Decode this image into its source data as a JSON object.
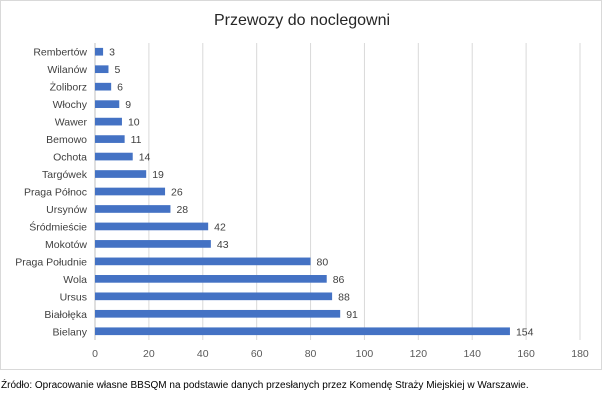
{
  "chart_data": {
    "type": "bar",
    "orientation": "horizontal",
    "title": "Przewozy do noclegowni",
    "xlabel": "",
    "ylabel": "",
    "categories": [
      "Rembertów",
      "Wilanów",
      "Żoliborz",
      "Włochy",
      "Wawer",
      "Bemowo",
      "Ochota",
      "Targówek",
      "Praga Północ",
      "Ursynów",
      "Śródmieście",
      "Mokotów",
      "Praga Południe",
      "Wola",
      "Ursus",
      "Białołęka",
      "Bielany"
    ],
    "values": [
      3,
      5,
      6,
      9,
      10,
      11,
      14,
      19,
      26,
      28,
      42,
      43,
      80,
      86,
      88,
      91,
      154
    ],
    "xlim": [
      0,
      180
    ],
    "xticks": [
      0,
      20,
      40,
      60,
      80,
      100,
      120,
      140,
      160,
      180
    ],
    "grid": true,
    "legend": "none",
    "data_labels": true,
    "bar_color": "#4472c4"
  },
  "source_note": "Źródło: Opracowanie własne BBSQM na podstawie danych przesłanych przez Komendę Straży Miejskiej w Warszawie."
}
